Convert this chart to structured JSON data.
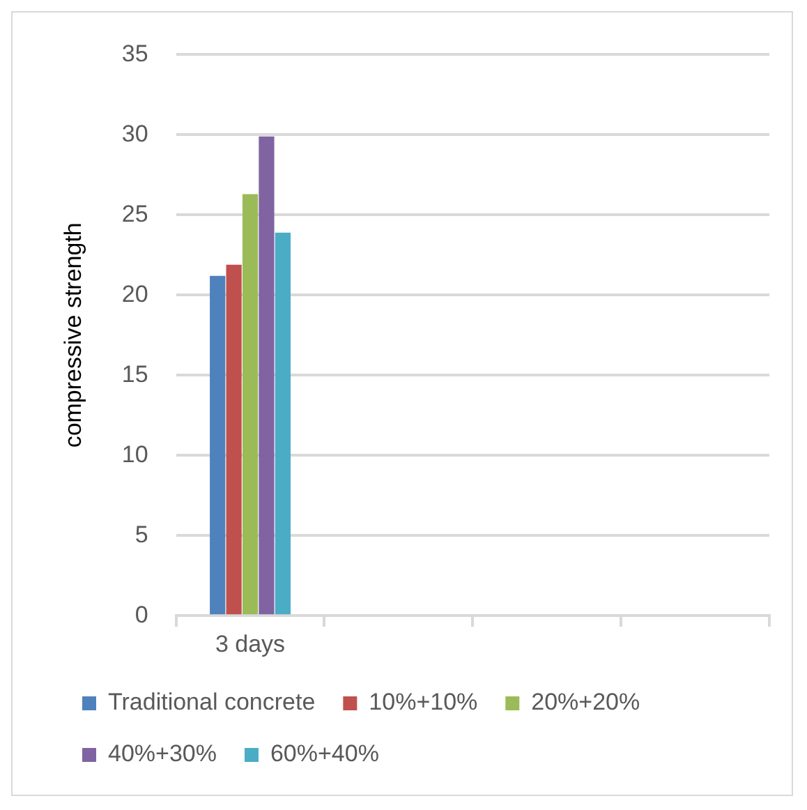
{
  "chart_data": {
    "type": "bar",
    "ylabel": "compressive strength",
    "categories": [
      "3 days",
      null,
      null,
      null
    ],
    "series": [
      {
        "name": "Traditional concrete",
        "color": "#4f81bd",
        "values": [
          21.2,
          null,
          null,
          null
        ]
      },
      {
        "name": "10%+10%",
        "color": "#c0504d",
        "values": [
          21.9,
          null,
          null,
          null
        ]
      },
      {
        "name": "20%+20%",
        "color": "#9bbb59",
        "values": [
          26.3,
          null,
          null,
          null
        ]
      },
      {
        "name": "40%+30%",
        "color": "#8064a2",
        "values": [
          29.9,
          null,
          null,
          null
        ]
      },
      {
        "name": "60%+40%",
        "color": "#4bacc6",
        "values": [
          23.9,
          null,
          null,
          null
        ]
      }
    ],
    "ylim": [
      0,
      35
    ],
    "yticks": [
      0,
      5,
      10,
      15,
      20,
      25,
      30,
      35
    ],
    "grid": "y",
    "legend": "bottom"
  }
}
